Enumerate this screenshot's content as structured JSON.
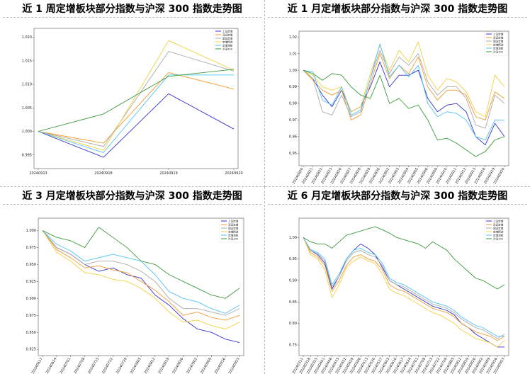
{
  "panels": [
    {
      "title": "近 1 周定增板块部分指数与沪深 300 指数走势图"
    },
    {
      "title": "近 1 月定增板块部分指数与沪深 300 指数走势图"
    },
    {
      "title": "近 3 月定增板块部分指数与沪深 300 指数走势图"
    },
    {
      "title": "近 6 月定增板块部分指数与沪深 300 指数走势图"
    }
  ],
  "chart_data": [
    {
      "type": "line",
      "title": "近 1 周定增板块部分指数与沪深 300 指数走势图",
      "x": [
        "20240913",
        "20240918",
        "20240919",
        "20240920"
      ],
      "ylim": [
        0.993,
        1.021
      ],
      "yticks": [
        0.995,
        1.0,
        1.005,
        1.01,
        1.015,
        1.02
      ],
      "ytick_labels": [
        "0.995",
        "1.000",
        "1.005",
        "1.010",
        "1.015",
        "1.020"
      ],
      "grid": false,
      "legend": "top-right",
      "series": [
        {
          "name": "上证定增",
          "color": "#3333cc",
          "values": [
            1.0,
            0.9945,
            1.008,
            1.0005
          ]
        },
        {
          "name": "深证定增",
          "color": "#f39c32",
          "values": [
            1.0,
            0.9975,
            1.0125,
            1.009
          ]
        },
        {
          "name": "国证定增",
          "color": "#aaaaaa",
          "values": [
            1.0,
            0.9968,
            1.017,
            1.0128
          ]
        },
        {
          "name": "定增精选",
          "color": "#f4d03f",
          "values": [
            1.0,
            0.996,
            1.0193,
            1.013
          ]
        },
        {
          "name": "定增领航",
          "color": "#4fc3f7",
          "values": [
            1.0,
            0.9955,
            1.012,
            1.012
          ]
        },
        {
          "name": "沪深300",
          "color": "#3a9a3a",
          "values": [
            1.0,
            1.0037,
            1.0117,
            1.0132
          ]
        }
      ]
    },
    {
      "type": "line",
      "title": "近 1 月定增板块部分指数与沪深 300 指数走势图",
      "x": [
        "20240820",
        "20240821",
        "20240822",
        "20240823",
        "20240826",
        "20240827",
        "20240828",
        "20240829",
        "20240830",
        "20240902",
        "20240903",
        "20240904",
        "20240905",
        "20240906",
        "20240909",
        "20240910",
        "20240911",
        "20240912",
        "20240913",
        "20240918",
        "20240919",
        "20240920"
      ],
      "ylim": [
        0.945,
        1.021
      ],
      "yticks": [
        0.95,
        0.96,
        0.97,
        0.98,
        0.99,
        1.0,
        1.01,
        1.02
      ],
      "ytick_labels": [
        "0.95",
        "0.96",
        "0.97",
        "0.98",
        "0.99",
        "1.00",
        "1.01",
        "1.02"
      ],
      "grid": false,
      "legend": "top-right",
      "series": [
        {
          "name": "上证定增",
          "color": "#3333cc",
          "values": [
            1.0,
            0.995,
            0.985,
            0.978,
            0.988,
            0.975,
            0.978,
            0.99,
            1.005,
            0.99,
            0.997,
            0.997,
            1.0,
            0.983,
            0.975,
            0.979,
            0.98,
            0.975,
            0.96,
            0.955,
            0.968,
            0.96
          ]
        },
        {
          "name": "深证定增",
          "color": "#f39c32",
          "values": [
            1.0,
            0.994,
            0.988,
            0.985,
            0.988,
            0.97,
            0.973,
            0.992,
            1.01,
            0.995,
            1.003,
            0.998,
            1.008,
            0.99,
            0.982,
            0.988,
            0.988,
            0.985,
            0.972,
            0.97,
            0.987,
            0.983
          ]
        },
        {
          "name": "国证定增",
          "color": "#aaaaaa",
          "values": [
            1.0,
            0.995,
            0.975,
            0.973,
            0.985,
            0.972,
            0.975,
            0.995,
            1.012,
            0.998,
            1.008,
            1.003,
            1.01,
            0.993,
            0.985,
            0.99,
            0.99,
            0.983,
            0.967,
            0.965,
            0.985,
            0.98
          ]
        },
        {
          "name": "定增精选",
          "color": "#f4d03f",
          "values": [
            1.0,
            0.997,
            0.99,
            0.988,
            0.99,
            0.975,
            0.978,
            0.998,
            1.015,
            1.0,
            1.012,
            1.005,
            1.017,
            0.997,
            0.988,
            0.995,
            0.993,
            0.987,
            0.975,
            0.972,
            0.997,
            0.99
          ]
        },
        {
          "name": "定增领航",
          "color": "#4fc3f7",
          "values": [
            1.0,
            0.999,
            0.982,
            0.979,
            0.99,
            0.973,
            0.976,
            0.995,
            1.016,
            0.996,
            1.003,
            0.996,
            1.003,
            0.98,
            0.972,
            0.975,
            0.974,
            0.97,
            0.96,
            0.958,
            0.97,
            0.97
          ]
        },
        {
          "name": "沪深300",
          "color": "#3a9a3a",
          "values": [
            1.0,
            0.998,
            0.994,
            0.998,
            0.997,
            0.99,
            0.985,
            0.983,
            0.997,
            0.98,
            0.983,
            0.977,
            0.979,
            0.97,
            0.958,
            0.959,
            0.956,
            0.952,
            0.948,
            0.951,
            0.958,
            0.96
          ]
        }
      ]
    },
    {
      "type": "line",
      "title": "近 3 月定增板块部分指数与沪深 300 指数走势图",
      "x": [
        "20240617",
        "20240624",
        "20240701",
        "20240708",
        "20240715",
        "20240722",
        "20240729",
        "20240805",
        "20240812",
        "20240819",
        "20240826",
        "20240902",
        "20240909",
        "20240916",
        "20240923"
      ],
      "ylim": [
        0.822,
        1.012
      ],
      "yticks": [
        0.825,
        0.85,
        0.875,
        0.9,
        0.925,
        0.95,
        0.975,
        1.0
      ],
      "ytick_labels": [
        "0.825",
        "0.850",
        "0.875",
        "0.900",
        "0.925",
        "0.950",
        "0.975",
        "1.000"
      ],
      "grid": false,
      "legend": "top-right",
      "series": [
        {
          "name": "上证定增",
          "color": "#3333cc",
          "values": [
            1.0,
            0.975,
            0.965,
            0.95,
            0.94,
            0.945,
            0.935,
            0.93,
            0.905,
            0.89,
            0.87,
            0.855,
            0.85,
            0.84,
            0.835
          ]
        },
        {
          "name": "深证定增",
          "color": "#f39c32",
          "values": [
            1.0,
            0.972,
            0.96,
            0.945,
            0.948,
            0.942,
            0.938,
            0.925,
            0.912,
            0.895,
            0.875,
            0.88,
            0.872,
            0.868,
            0.875
          ]
        },
        {
          "name": "国证定增",
          "color": "#aaaaaa",
          "values": [
            1.0,
            0.975,
            0.965,
            0.95,
            0.955,
            0.955,
            0.95,
            0.94,
            0.925,
            0.9,
            0.885,
            0.885,
            0.88,
            0.875,
            0.885
          ]
        },
        {
          "name": "定增精选",
          "color": "#f4d03f",
          "values": [
            1.0,
            0.968,
            0.955,
            0.938,
            0.935,
            0.928,
            0.925,
            0.915,
            0.9,
            0.88,
            0.865,
            0.868,
            0.86,
            0.855,
            0.865
          ]
        },
        {
          "name": "定增领航",
          "color": "#4fc3f7",
          "values": [
            1.0,
            0.98,
            0.97,
            0.955,
            0.96,
            0.965,
            0.96,
            0.955,
            0.935,
            0.91,
            0.9,
            0.895,
            0.885,
            0.878,
            0.89
          ]
        },
        {
          "name": "沪深300",
          "color": "#3a9a3a",
          "values": [
            1.0,
            0.99,
            0.985,
            0.975,
            1.005,
            0.99,
            0.975,
            0.955,
            0.95,
            0.935,
            0.925,
            0.915,
            0.905,
            0.9,
            0.915
          ]
        }
      ]
    },
    {
      "type": "line",
      "title": "近 6 月定增板块部分指数与沪深 300 指数走势图",
      "x": [
        "20240311",
        "20240318",
        "20240325",
        "20240401",
        "20240408",
        "20240415",
        "20240422",
        "20240429",
        "20240506",
        "20240513",
        "20240520",
        "20240527",
        "20240603",
        "20240610",
        "20240617",
        "20240624",
        "20240701",
        "20240708",
        "20240715",
        "20240722",
        "20240729",
        "20240805",
        "20240812",
        "20240819",
        "20240826",
        "20240902",
        "20240909",
        "20240916",
        "20240923"
      ],
      "ylim": [
        0.735,
        1.035
      ],
      "yticks": [
        0.75,
        0.8,
        0.85,
        0.9,
        0.95,
        1.0
      ],
      "ytick_labels": [
        "0.75",
        "0.80",
        "0.85",
        "0.90",
        "0.95",
        "1.00"
      ],
      "grid": false,
      "legend": "top-right",
      "series": [
        {
          "name": "上证定增",
          "color": "#3333cc",
          "values": [
            1.0,
            0.97,
            0.96,
            0.94,
            0.88,
            0.91,
            0.95,
            0.97,
            0.985,
            0.975,
            0.96,
            0.93,
            0.9,
            0.89,
            0.88,
            0.87,
            0.86,
            0.85,
            0.84,
            0.835,
            0.83,
            0.82,
            0.8,
            0.79,
            0.775,
            0.765,
            0.755,
            0.745,
            0.745
          ]
        },
        {
          "name": "深证定增",
          "color": "#f39c32",
          "values": [
            1.0,
            0.965,
            0.955,
            0.935,
            0.875,
            0.9,
            0.935,
            0.955,
            0.96,
            0.95,
            0.945,
            0.925,
            0.89,
            0.88,
            0.875,
            0.865,
            0.855,
            0.845,
            0.835,
            0.83,
            0.825,
            0.815,
            0.8,
            0.79,
            0.78,
            0.775,
            0.77,
            0.76,
            0.77
          ]
        },
        {
          "name": "国证定增",
          "color": "#aaaaaa",
          "values": [
            1.0,
            0.97,
            0.962,
            0.945,
            0.885,
            0.91,
            0.945,
            0.965,
            0.97,
            0.96,
            0.955,
            0.935,
            0.9,
            0.89,
            0.885,
            0.875,
            0.865,
            0.855,
            0.845,
            0.84,
            0.835,
            0.825,
            0.81,
            0.8,
            0.79,
            0.785,
            0.775,
            0.765,
            0.775
          ]
        },
        {
          "name": "定增精选",
          "color": "#f4d03f",
          "values": [
            1.0,
            0.96,
            0.95,
            0.925,
            0.86,
            0.89,
            0.93,
            0.945,
            0.955,
            0.945,
            0.94,
            0.915,
            0.88,
            0.87,
            0.865,
            0.855,
            0.845,
            0.835,
            0.825,
            0.82,
            0.81,
            0.8,
            0.785,
            0.775,
            0.765,
            0.76,
            0.755,
            0.745,
            0.76
          ]
        },
        {
          "name": "定增领航",
          "color": "#4fc3f7",
          "values": [
            1.0,
            0.972,
            0.965,
            0.95,
            0.89,
            0.915,
            0.95,
            0.97,
            0.975,
            0.965,
            0.96,
            0.94,
            0.905,
            0.895,
            0.89,
            0.88,
            0.87,
            0.86,
            0.85,
            0.845,
            0.84,
            0.83,
            0.815,
            0.805,
            0.795,
            0.79,
            0.78,
            0.77,
            0.77
          ]
        },
        {
          "name": "沪深300",
          "color": "#3a9a3a",
          "values": [
            1.0,
            0.99,
            0.985,
            0.985,
            0.975,
            0.99,
            1.005,
            1.01,
            1.015,
            1.02,
            1.025,
            1.018,
            1.01,
            1.0,
            0.995,
            0.99,
            0.985,
            0.975,
            0.99,
            0.98,
            0.97,
            0.95,
            0.935,
            0.92,
            0.905,
            0.9,
            0.89,
            0.88,
            0.89
          ]
        }
      ]
    }
  ]
}
